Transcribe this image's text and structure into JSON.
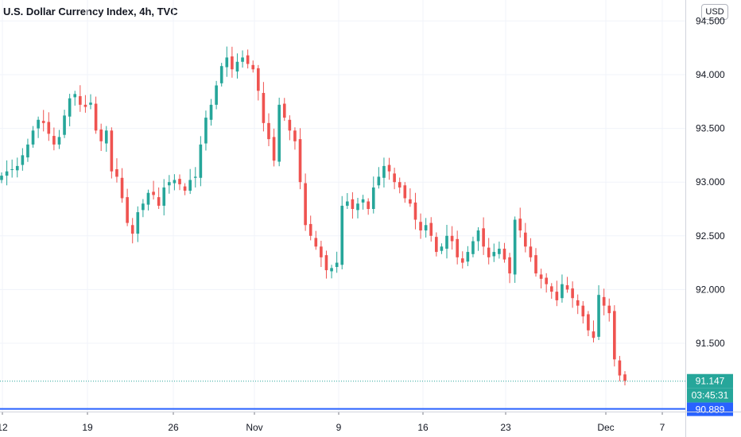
{
  "chart_data": {
    "type": "candlestick",
    "title": "U.S. Dollar Currency Index, 4h, TVC",
    "currency": "USD",
    "y_ticks": [
      "94.500",
      "94.000",
      "93.500",
      "93.000",
      "92.500",
      "92.000",
      "91.500"
    ],
    "ylim": [
      90.75,
      94.6
    ],
    "x_ticks": [
      "12",
      "19",
      "26",
      "Nov",
      "9",
      "16",
      "23",
      "Dec",
      "7"
    ],
    "last_price": "91.147",
    "countdown": "03:45:31",
    "price_line": "90.889",
    "colors": {
      "up": "#26a69a",
      "down": "#ef5350",
      "price_line": "#2962ff",
      "grid": "#f0f3fa"
    },
    "closes": [
      93.06,
      93.1,
      93.12,
      93.15,
      93.25,
      93.35,
      93.48,
      93.58,
      93.55,
      93.45,
      93.35,
      93.42,
      93.62,
      93.78,
      93.82,
      93.72,
      93.7,
      93.74,
      93.48,
      93.38,
      93.48,
      93.1,
      93.05,
      92.85,
      92.62,
      92.52,
      92.72,
      92.8,
      92.9,
      92.88,
      92.78,
      92.95,
      93.0,
      93.02,
      92.98,
      92.92,
      93.02,
      93.05,
      93.35,
      93.6,
      93.72,
      93.9,
      94.08,
      94.16,
      94.05,
      94.12,
      94.16,
      94.1,
      94.05,
      93.85,
      93.55,
      93.4,
      93.2,
      93.72,
      93.6,
      93.48,
      93.38,
      93.0,
      92.6,
      92.5,
      92.4,
      92.3,
      92.18,
      92.2,
      92.25,
      92.78,
      92.82,
      92.75,
      92.8,
      92.84,
      92.75,
      92.95,
      93.05,
      93.15,
      93.1,
      93.0,
      92.95,
      92.85,
      92.8,
      92.65,
      92.55,
      92.6,
      92.5,
      92.35,
      92.4,
      92.5,
      92.45,
      92.3,
      92.25,
      92.35,
      92.45,
      92.55,
      92.4,
      92.3,
      92.35,
      92.38,
      92.28,
      92.15,
      92.65,
      92.55,
      92.4,
      92.3,
      92.15,
      92.1,
      92.05,
      91.98,
      91.9,
      92.05,
      92.0,
      91.92,
      91.85,
      91.75,
      91.62,
      91.55,
      91.95,
      91.85,
      91.78,
      91.35,
      91.2,
      91.15
    ],
    "series_note": ""
  }
}
